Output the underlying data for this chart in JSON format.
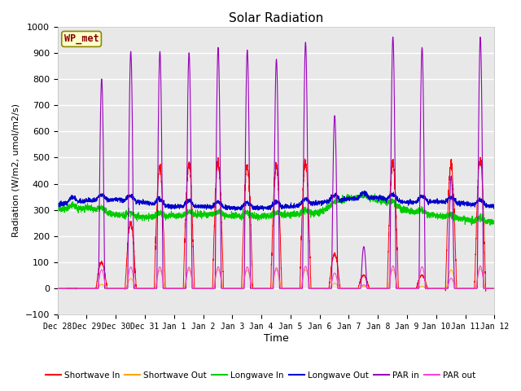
{
  "title": "Solar Radiation",
  "ylabel": "Radiation (W/m2, umol/m2/s)",
  "xlabel": "Time",
  "ylim": [
    -100,
    1000
  ],
  "yticks": [
    -100,
    0,
    100,
    200,
    300,
    400,
    500,
    600,
    700,
    800,
    900,
    1000
  ],
  "date_labels": [
    "Dec 28",
    "Dec 29",
    "Dec 30",
    "Dec 31",
    "Jan 1",
    "Jan 2",
    "Jan 3",
    "Jan 4",
    "Jan 5",
    "Jan 6",
    "Jan 7",
    "Jan 8",
    "Jan 9",
    "Jan 10",
    "Jan 11",
    "Jan 12"
  ],
  "colors": {
    "shortwave_in": "#FF0000",
    "shortwave_out": "#FFA500",
    "longwave_in": "#00CC00",
    "longwave_out": "#0000CC",
    "par_in": "#9900BB",
    "par_out": "#FF44CC"
  },
  "plot_bg": "#E8E8E8",
  "fig_bg": "#FFFFFF",
  "grid_color": "#FFFFFF",
  "wp_met_box_color": "#FFFFCC",
  "wp_met_border_color": "#888800",
  "wp_met_text_color": "#880000",
  "legend_entries": [
    "Shortwave In",
    "Shortwave Out",
    "Longwave In",
    "Longwave Out",
    "PAR in",
    "PAR out"
  ]
}
